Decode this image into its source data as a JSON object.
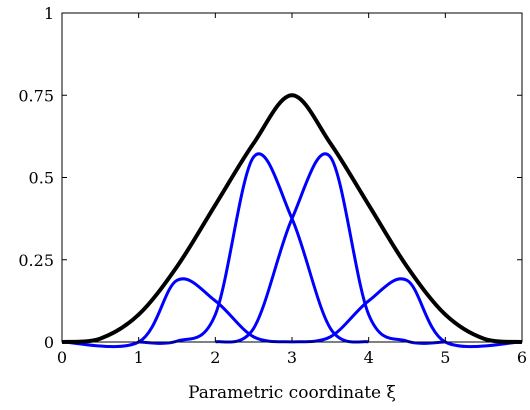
{
  "chart_data": {
    "type": "line",
    "xlabel": "Parametric coordinate ξ",
    "ylabel": "",
    "xlim": [
      0,
      6
    ],
    "ylim": [
      0,
      1
    ],
    "grid": false,
    "x_ticks": [
      "0",
      "1",
      "2",
      "3",
      "4",
      "5",
      "6"
    ],
    "y_ticks": [
      "0",
      "0.25",
      "0.5",
      "0.75",
      "1"
    ],
    "series": [
      {
        "color": "#0000ff",
        "style": "basis-component",
        "x": [
          0,
          1,
          1.5,
          2,
          2.5,
          3
        ],
        "y": [
          0,
          0,
          0.1875,
          0.125,
          0.0156,
          0
        ]
      },
      {
        "color": "#0000ff",
        "style": "basis-component",
        "x": [
          1,
          1.5,
          2,
          2.5,
          3,
          3.5,
          4
        ],
        "y": [
          0,
          0.0026,
          0.0833,
          0.5625,
          0.375,
          0.0417,
          0
        ]
      },
      {
        "color": "#0000ff",
        "style": "basis-component",
        "x": [
          2,
          2.5,
          3,
          3.5,
          4,
          4.5,
          5
        ],
        "y": [
          0,
          0.0417,
          0.375,
          0.5625,
          0.0833,
          0.0026,
          0
        ]
      },
      {
        "color": "#0000ff",
        "style": "basis-component",
        "x": [
          3,
          3.5,
          4,
          4.5,
          5,
          6
        ],
        "y": [
          0,
          0.0156,
          0.125,
          0.1875,
          0,
          0
        ]
      },
      {
        "color": "#000000",
        "style": "sum",
        "x": [
          0,
          0.5,
          1,
          1.5,
          2,
          2.5,
          3,
          3.5,
          4,
          4.5,
          5,
          5.5,
          6
        ],
        "y": [
          0,
          0.0104,
          0.0833,
          0.2292,
          0.4167,
          0.6042,
          0.75,
          0.6042,
          0.4167,
          0.2292,
          0.0833,
          0.0104,
          0
        ]
      }
    ]
  }
}
